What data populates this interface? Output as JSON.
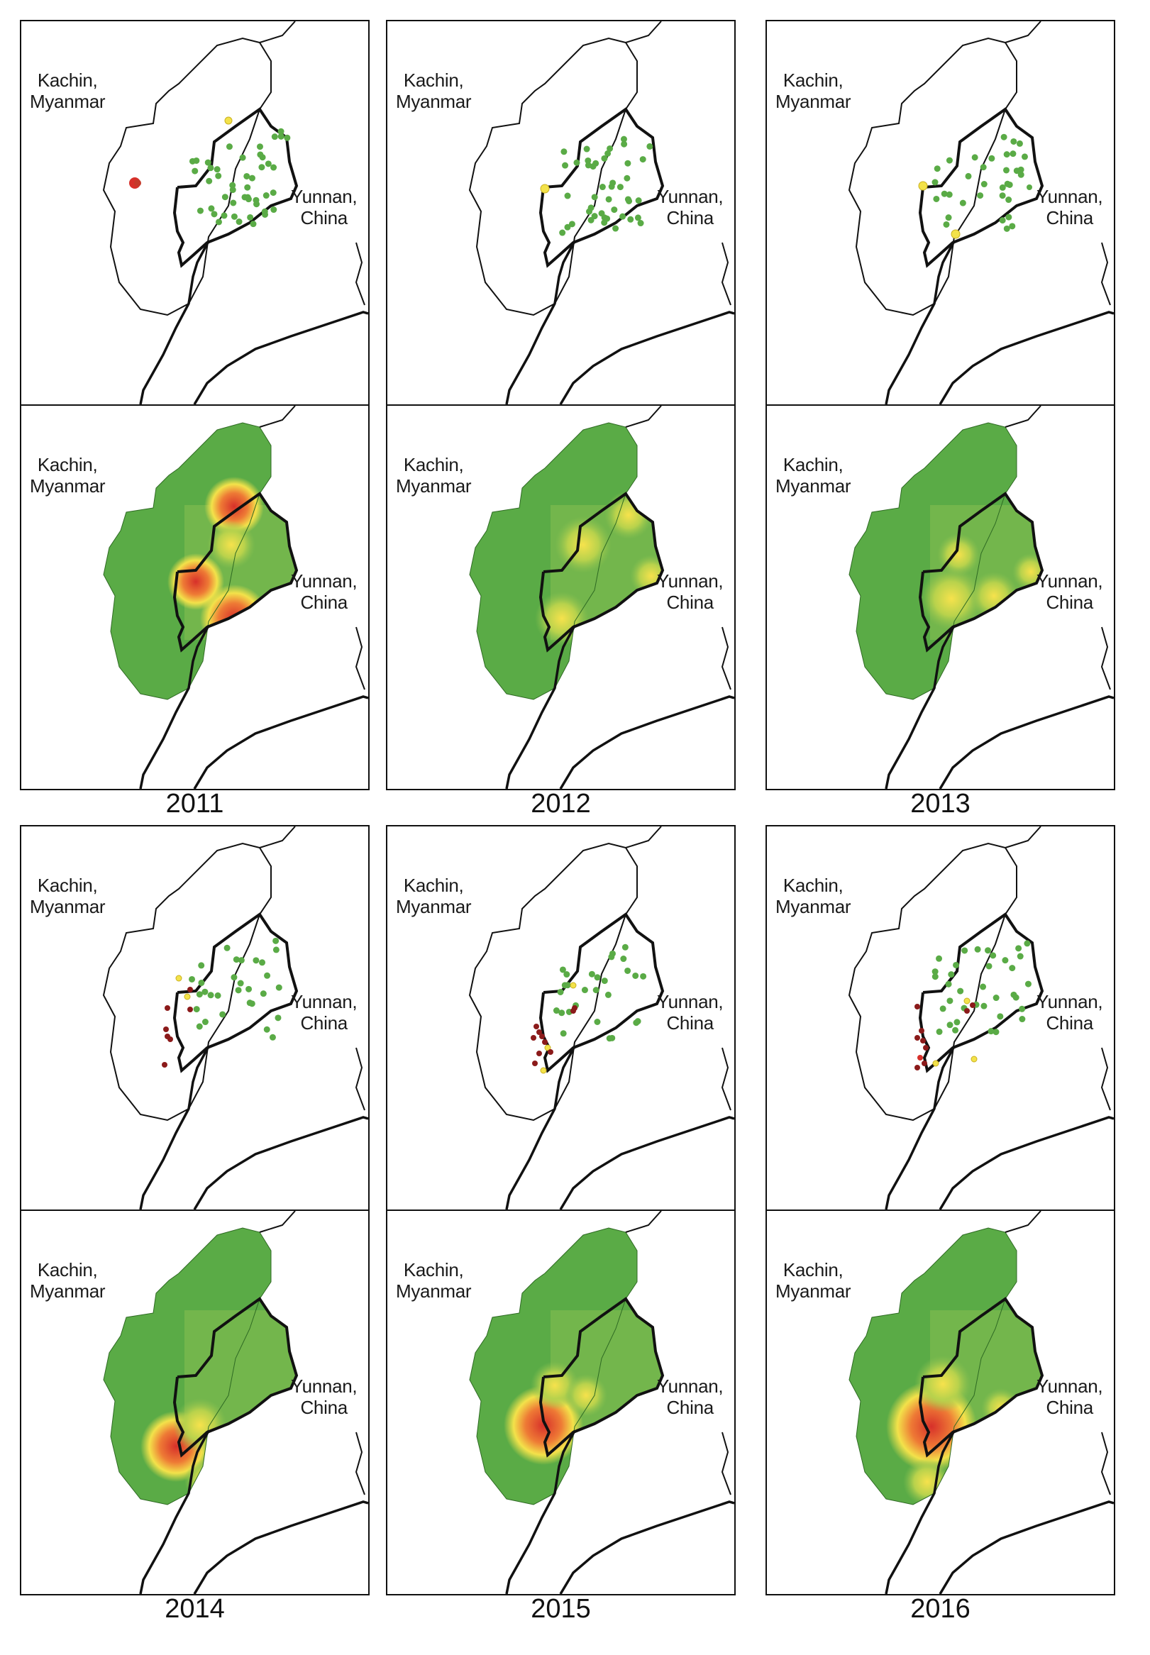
{
  "labels": {
    "kachin_1": "Kachin,",
    "kachin_2": "Myanmar",
    "yunnan_1": "Yunnan,",
    "yunnan_2": "China"
  },
  "legend_colors": {
    "low": "#5aab46",
    "moderate": "#f3e24a",
    "high": "#d7302a",
    "very_high": "#8b1a1a"
  },
  "panels": [
    {
      "year": "2011"
    },
    {
      "year": "2012"
    },
    {
      "year": "2013"
    },
    {
      "year": "2014"
    },
    {
      "year": "2015"
    },
    {
      "year": "2016"
    }
  ]
}
